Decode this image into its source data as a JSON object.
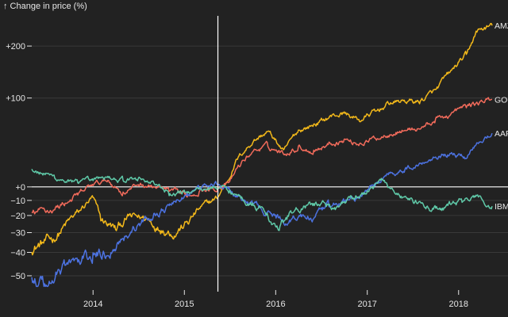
{
  "chart_data": {
    "type": "line",
    "title": "",
    "ylabel": "↑ Change in price (%)",
    "xlabel": "",
    "y_scale": "log",
    "y_baseline_ratio": 1,
    "ylim": [
      -55,
      275
    ],
    "xlim": [
      "2013-05-01",
      "2018-05-15"
    ],
    "grid": true,
    "rule_date": "2015-05-15",
    "x_ticks": [
      {
        "date": "2014-01-01",
        "label": "2014"
      },
      {
        "date": "2015-01-01",
        "label": "2015"
      },
      {
        "date": "2016-01-01",
        "label": "2016"
      },
      {
        "date": "2017-01-01",
        "label": "2017"
      },
      {
        "date": "2018-01-01",
        "label": "2018"
      }
    ],
    "y_ticks": [
      {
        "value": -50,
        "label": "−50"
      },
      {
        "value": -40,
        "label": "−40"
      },
      {
        "value": -30,
        "label": "−30"
      },
      {
        "value": -20,
        "label": "−20"
      },
      {
        "value": -10,
        "label": "−10"
      },
      {
        "value": 0,
        "label": "+0"
      },
      {
        "value": 100,
        "label": "+100"
      },
      {
        "value": 200,
        "label": "+200"
      }
    ],
    "series": [
      {
        "name": "AMZN",
        "label_shown": "AMZ",
        "color": "#f2b81a",
        "points": [
          [
            "2013-05-01",
            -38
          ],
          [
            "2013-08-01",
            -33
          ],
          [
            "2013-11-01",
            -18
          ],
          [
            "2014-01-01",
            -8
          ],
          [
            "2014-02-01",
            -22
          ],
          [
            "2014-04-01",
            -28
          ],
          [
            "2014-06-01",
            -20
          ],
          [
            "2014-08-01",
            -22
          ],
          [
            "2014-10-01",
            -28
          ],
          [
            "2014-12-01",
            -30
          ],
          [
            "2015-01-15",
            -24
          ],
          [
            "2015-03-01",
            -16
          ],
          [
            "2015-05-15",
            -8
          ],
          [
            "2015-07-01",
            8
          ],
          [
            "2015-08-01",
            25
          ],
          [
            "2015-10-01",
            42
          ],
          [
            "2015-12-01",
            54
          ],
          [
            "2016-02-01",
            32
          ],
          [
            "2016-04-01",
            55
          ],
          [
            "2016-06-01",
            62
          ],
          [
            "2016-08-01",
            72
          ],
          [
            "2016-10-01",
            78
          ],
          [
            "2016-12-01",
            68
          ],
          [
            "2017-02-01",
            80
          ],
          [
            "2017-04-01",
            92
          ],
          [
            "2017-06-01",
            96
          ],
          [
            "2017-08-01",
            94
          ],
          [
            "2017-10-01",
            112
          ],
          [
            "2017-12-01",
            145
          ],
          [
            "2018-02-01",
            180
          ],
          [
            "2018-03-15",
            238
          ],
          [
            "2018-05-15",
            252
          ]
        ]
      },
      {
        "name": "GOOG",
        "label_shown": "GOO",
        "color": "#f26b5b",
        "points": [
          [
            "2013-05-01",
            -18
          ],
          [
            "2013-08-01",
            -16
          ],
          [
            "2013-11-01",
            -6
          ],
          [
            "2014-01-01",
            2
          ],
          [
            "2014-03-01",
            5
          ],
          [
            "2014-05-01",
            -5
          ],
          [
            "2014-07-01",
            2
          ],
          [
            "2014-09-01",
            0
          ],
          [
            "2014-11-01",
            -3
          ],
          [
            "2015-01-15",
            -7
          ],
          [
            "2015-03-01",
            -3
          ],
          [
            "2015-05-15",
            -1
          ],
          [
            "2015-07-01",
            3
          ],
          [
            "2015-08-01",
            16
          ],
          [
            "2015-10-01",
            32
          ],
          [
            "2015-12-01",
            38
          ],
          [
            "2016-02-01",
            30
          ],
          [
            "2016-04-01",
            36
          ],
          [
            "2016-06-01",
            32
          ],
          [
            "2016-08-01",
            40
          ],
          [
            "2016-10-01",
            44
          ],
          [
            "2016-12-01",
            40
          ],
          [
            "2017-02-01",
            46
          ],
          [
            "2017-04-01",
            52
          ],
          [
            "2017-06-01",
            56
          ],
          [
            "2017-08-01",
            58
          ],
          [
            "2017-10-01",
            68
          ],
          [
            "2017-12-01",
            76
          ],
          [
            "2018-02-01",
            88
          ],
          [
            "2018-03-15",
            92
          ],
          [
            "2018-05-15",
            98
          ]
        ]
      },
      {
        "name": "AAPL",
        "label_shown": "AAP",
        "color": "#4c72e0",
        "points": [
          [
            "2013-05-01",
            -50
          ],
          [
            "2013-07-01",
            -54
          ],
          [
            "2013-09-01",
            -46
          ],
          [
            "2013-11-01",
            -44
          ],
          [
            "2014-01-01",
            -42
          ],
          [
            "2014-03-01",
            -40
          ],
          [
            "2014-05-01",
            -32
          ],
          [
            "2014-07-01",
            -26
          ],
          [
            "2014-09-01",
            -20
          ],
          [
            "2014-11-01",
            -14
          ],
          [
            "2015-01-15",
            -6
          ],
          [
            "2015-03-01",
            0
          ],
          [
            "2015-05-15",
            2
          ],
          [
            "2015-07-01",
            -2
          ],
          [
            "2015-08-15",
            -10
          ],
          [
            "2015-10-01",
            -12
          ],
          [
            "2015-12-01",
            -18
          ],
          [
            "2016-02-01",
            -24
          ],
          [
            "2016-04-01",
            -20
          ],
          [
            "2016-06-01",
            -22
          ],
          [
            "2016-08-01",
            -14
          ],
          [
            "2016-10-01",
            -10
          ],
          [
            "2016-12-01",
            -8
          ],
          [
            "2017-02-01",
            2
          ],
          [
            "2017-04-01",
            12
          ],
          [
            "2017-06-01",
            14
          ],
          [
            "2017-08-01",
            20
          ],
          [
            "2017-10-01",
            28
          ],
          [
            "2017-12-01",
            30
          ],
          [
            "2018-02-01",
            26
          ],
          [
            "2018-03-15",
            42
          ],
          [
            "2018-05-15",
            52
          ]
        ]
      },
      {
        "name": "IBM",
        "label_shown": "IBM",
        "color": "#5fc9a8",
        "points": [
          [
            "2013-05-01",
            14
          ],
          [
            "2013-08-01",
            8
          ],
          [
            "2013-11-01",
            3
          ],
          [
            "2014-01-01",
            5
          ],
          [
            "2014-03-01",
            8
          ],
          [
            "2014-05-01",
            6
          ],
          [
            "2014-07-01",
            6
          ],
          [
            "2014-09-01",
            4
          ],
          [
            "2014-11-01",
            -6
          ],
          [
            "2015-01-15",
            -4
          ],
          [
            "2015-03-01",
            -2
          ],
          [
            "2015-05-15",
            0
          ],
          [
            "2015-07-01",
            -3
          ],
          [
            "2015-08-15",
            -8
          ],
          [
            "2015-10-01",
            -12
          ],
          [
            "2015-12-01",
            -20
          ],
          [
            "2016-01-15",
            -29
          ],
          [
            "2016-03-01",
            -18
          ],
          [
            "2016-05-01",
            -15
          ],
          [
            "2016-07-01",
            -12
          ],
          [
            "2016-09-01",
            -14
          ],
          [
            "2016-11-01",
            -9
          ],
          [
            "2017-01-01",
            -4
          ],
          [
            "2017-03-01",
            6
          ],
          [
            "2017-05-01",
            -5
          ],
          [
            "2017-07-01",
            -10
          ],
          [
            "2017-09-01",
            -15
          ],
          [
            "2017-11-01",
            -16
          ],
          [
            "2018-01-15",
            -10
          ],
          [
            "2018-03-15",
            -8
          ],
          [
            "2018-05-15",
            -14
          ]
        ]
      }
    ]
  }
}
